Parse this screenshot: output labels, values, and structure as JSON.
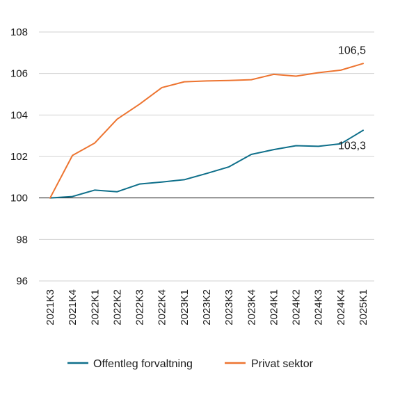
{
  "chart_data": {
    "type": "line",
    "title": "",
    "xlabel": "",
    "ylabel": "",
    "x": [
      "2021K3",
      "2021K4",
      "2022K1",
      "2022K2",
      "2022K3",
      "2022K4",
      "2023K1",
      "2023K2",
      "2023K3",
      "2023K4",
      "2024K1",
      "2024K2",
      "2024K3",
      "2024K4",
      "2025K1"
    ],
    "ylim": [
      96,
      108
    ],
    "yticks": [
      96,
      98,
      100,
      102,
      104,
      106,
      108
    ],
    "grid": true,
    "legend": "bottom",
    "series": [
      {
        "name": "Offentleg forvaltning",
        "color": "#0e6f8a",
        "values": [
          100.0,
          100.07,
          100.38,
          100.3,
          100.67,
          100.77,
          100.88,
          101.18,
          101.5,
          102.1,
          102.33,
          102.52,
          102.49,
          102.61,
          103.26
        ],
        "end_label": "103,3"
      },
      {
        "name": "Privat sektor",
        "color": "#ed7430",
        "values": [
          100.0,
          102.05,
          102.65,
          103.8,
          104.52,
          105.32,
          105.6,
          105.64,
          105.66,
          105.7,
          105.96,
          105.87,
          106.04,
          106.16,
          106.48
        ],
        "end_label": "106,5"
      }
    ]
  }
}
